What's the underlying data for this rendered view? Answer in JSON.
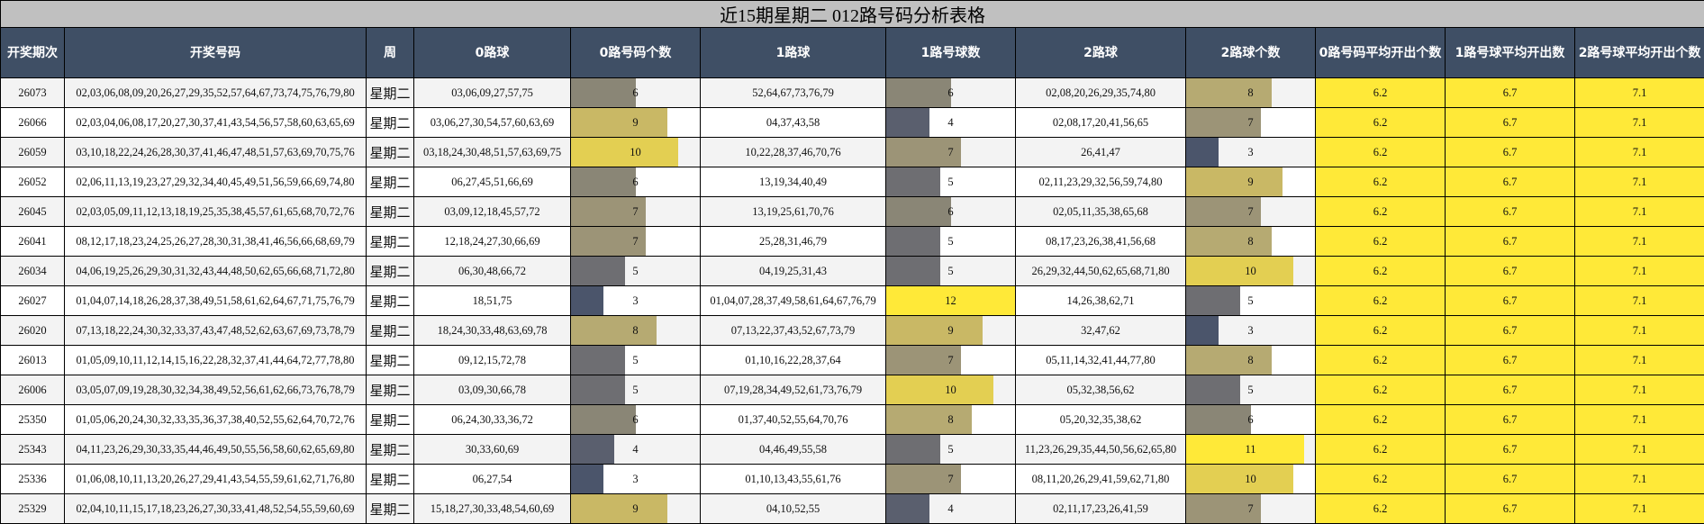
{
  "title": "近15期星期二 012路号码分析表格",
  "headers": [
    "开奖期次",
    "开奖号码",
    "周",
    "0路球",
    "0路号码个数",
    "1路球",
    "1路号球数",
    "2路球",
    "2路球个数",
    "0路号码平均开出个数",
    "1路号球平均开出数",
    "2路号球平均开出个数"
  ],
  "bar_max": 12,
  "bar_colors": {
    "3": "#4b556b",
    "4": "#5a5f6e",
    "5": "#6e6e72",
    "6": "#8a8676",
    "7": "#9c9477",
    "8": "#b6aa72",
    "9": "#c9b865",
    "10": "#e3cf52",
    "11": "#ffe938",
    "12": "#ffe938"
  },
  "avg_color": "#ffe938",
  "rows": [
    {
      "period": "26073",
      "numbers": "02,03,06,08,09,20,26,27,29,35,52,57,64,67,73,74,75,76,79,80",
      "week": "星期二",
      "r0": "03,06,09,27,57,75",
      "c0": "6",
      "r1": "52,64,67,73,76,79",
      "c1": "6",
      "r2": "02,08,20,26,29,35,74,80",
      "c2": "8",
      "avg0": "6.2",
      "avg1": "6.7",
      "avg2": "7.1"
    },
    {
      "period": "26066",
      "numbers": "02,03,04,06,08,17,20,27,30,37,41,43,54,56,57,58,60,63,65,69",
      "week": "星期二",
      "r0": "03,06,27,30,54,57,60,63,69",
      "c0": "9",
      "r1": "04,37,43,58",
      "c1": "4",
      "r2": "02,08,17,20,41,56,65",
      "c2": "7",
      "avg0": "6.2",
      "avg1": "6.7",
      "avg2": "7.1"
    },
    {
      "period": "26059",
      "numbers": "03,10,18,22,24,26,28,30,37,41,46,47,48,51,57,63,69,70,75,76",
      "week": "星期二",
      "r0": "03,18,24,30,48,51,57,63,69,75",
      "c0": "10",
      "r1": "10,22,28,37,46,70,76",
      "c1": "7",
      "r2": "26,41,47",
      "c2": "3",
      "avg0": "6.2",
      "avg1": "6.7",
      "avg2": "7.1"
    },
    {
      "period": "26052",
      "numbers": "02,06,11,13,19,23,27,29,32,34,40,45,49,51,56,59,66,69,74,80",
      "week": "星期二",
      "r0": "06,27,45,51,66,69",
      "c0": "6",
      "r1": "13,19,34,40,49",
      "c1": "5",
      "r2": "02,11,23,29,32,56,59,74,80",
      "c2": "9",
      "avg0": "6.2",
      "avg1": "6.7",
      "avg2": "7.1"
    },
    {
      "period": "26045",
      "numbers": "02,03,05,09,11,12,13,18,19,25,35,38,45,57,61,65,68,70,72,76",
      "week": "星期二",
      "r0": "03,09,12,18,45,57,72",
      "c0": "7",
      "r1": "13,19,25,61,70,76",
      "c1": "6",
      "r2": "02,05,11,35,38,65,68",
      "c2": "7",
      "avg0": "6.2",
      "avg1": "6.7",
      "avg2": "7.1"
    },
    {
      "period": "26041",
      "numbers": "08,12,17,18,23,24,25,26,27,28,30,31,38,41,46,56,66,68,69,79",
      "week": "星期二",
      "r0": "12,18,24,27,30,66,69",
      "c0": "7",
      "r1": "25,28,31,46,79",
      "c1": "5",
      "r2": "08,17,23,26,38,41,56,68",
      "c2": "8",
      "avg0": "6.2",
      "avg1": "6.7",
      "avg2": "7.1"
    },
    {
      "period": "26034",
      "numbers": "04,06,19,25,26,29,30,31,32,43,44,48,50,62,65,66,68,71,72,80",
      "week": "星期二",
      "r0": "06,30,48,66,72",
      "c0": "5",
      "r1": "04,19,25,31,43",
      "c1": "5",
      "r2": "26,29,32,44,50,62,65,68,71,80",
      "c2": "10",
      "avg0": "6.2",
      "avg1": "6.7",
      "avg2": "7.1"
    },
    {
      "period": "26027",
      "numbers": "01,04,07,14,18,26,28,37,38,49,51,58,61,62,64,67,71,75,76,79",
      "week": "星期二",
      "r0": "18,51,75",
      "c0": "3",
      "r1": "01,04,07,28,37,49,58,61,64,67,76,79",
      "c1": "12",
      "r2": "14,26,38,62,71",
      "c2": "5",
      "avg0": "6.2",
      "avg1": "6.7",
      "avg2": "7.1"
    },
    {
      "period": "26020",
      "numbers": "07,13,18,22,24,30,32,33,37,43,47,48,52,62,63,67,69,73,78,79",
      "week": "星期二",
      "r0": "18,24,30,33,48,63,69,78",
      "c0": "8",
      "r1": "07,13,22,37,43,52,67,73,79",
      "c1": "9",
      "r2": "32,47,62",
      "c2": "3",
      "avg0": "6.2",
      "avg1": "6.7",
      "avg2": "7.1"
    },
    {
      "period": "26013",
      "numbers": "01,05,09,10,11,12,14,15,16,22,28,32,37,41,44,64,72,77,78,80",
      "week": "星期二",
      "r0": "09,12,15,72,78",
      "c0": "5",
      "r1": "01,10,16,22,28,37,64",
      "c1": "7",
      "r2": "05,11,14,32,41,44,77,80",
      "c2": "8",
      "avg0": "6.2",
      "avg1": "6.7",
      "avg2": "7.1"
    },
    {
      "period": "26006",
      "numbers": "03,05,07,09,19,28,30,32,34,38,49,52,56,61,62,66,73,76,78,79",
      "week": "星期二",
      "r0": "03,09,30,66,78",
      "c0": "5",
      "r1": "07,19,28,34,49,52,61,73,76,79",
      "c1": "10",
      "r2": "05,32,38,56,62",
      "c2": "5",
      "avg0": "6.2",
      "avg1": "6.7",
      "avg2": "7.1"
    },
    {
      "period": "25350",
      "numbers": "01,05,06,20,24,30,32,33,35,36,37,38,40,52,55,62,64,70,72,76",
      "week": "星期二",
      "r0": "06,24,30,33,36,72",
      "c0": "6",
      "r1": "01,37,40,52,55,64,70,76",
      "c1": "8",
      "r2": "05,20,32,35,38,62",
      "c2": "6",
      "avg0": "6.2",
      "avg1": "6.7",
      "avg2": "7.1"
    },
    {
      "period": "25343",
      "numbers": "04,11,23,26,29,30,33,35,44,46,49,50,55,56,58,60,62,65,69,80",
      "week": "星期二",
      "r0": "30,33,60,69",
      "c0": "4",
      "r1": "04,46,49,55,58",
      "c1": "5",
      "r2": "11,23,26,29,35,44,50,56,62,65,80",
      "c2": "11",
      "avg0": "6.2",
      "avg1": "6.7",
      "avg2": "7.1"
    },
    {
      "period": "25336",
      "numbers": "01,06,08,10,11,13,20,26,27,29,41,43,54,55,59,61,62,71,76,80",
      "week": "星期二",
      "r0": "06,27,54",
      "c0": "3",
      "r1": "01,10,13,43,55,61,76",
      "c1": "7",
      "r2": "08,11,20,26,29,41,59,62,71,80",
      "c2": "10",
      "avg0": "6.2",
      "avg1": "6.7",
      "avg2": "7.1"
    },
    {
      "period": "25329",
      "numbers": "02,04,10,11,15,17,18,23,26,27,30,33,41,48,52,54,55,59,60,69",
      "week": "星期二",
      "r0": "15,18,27,30,33,48,54,60,69",
      "c0": "9",
      "r1": "04,10,52,55",
      "c1": "4",
      "r2": "02,11,17,23,26,41,59",
      "c2": "7",
      "avg0": "6.2",
      "avg1": "6.7",
      "avg2": "7.1"
    }
  ]
}
